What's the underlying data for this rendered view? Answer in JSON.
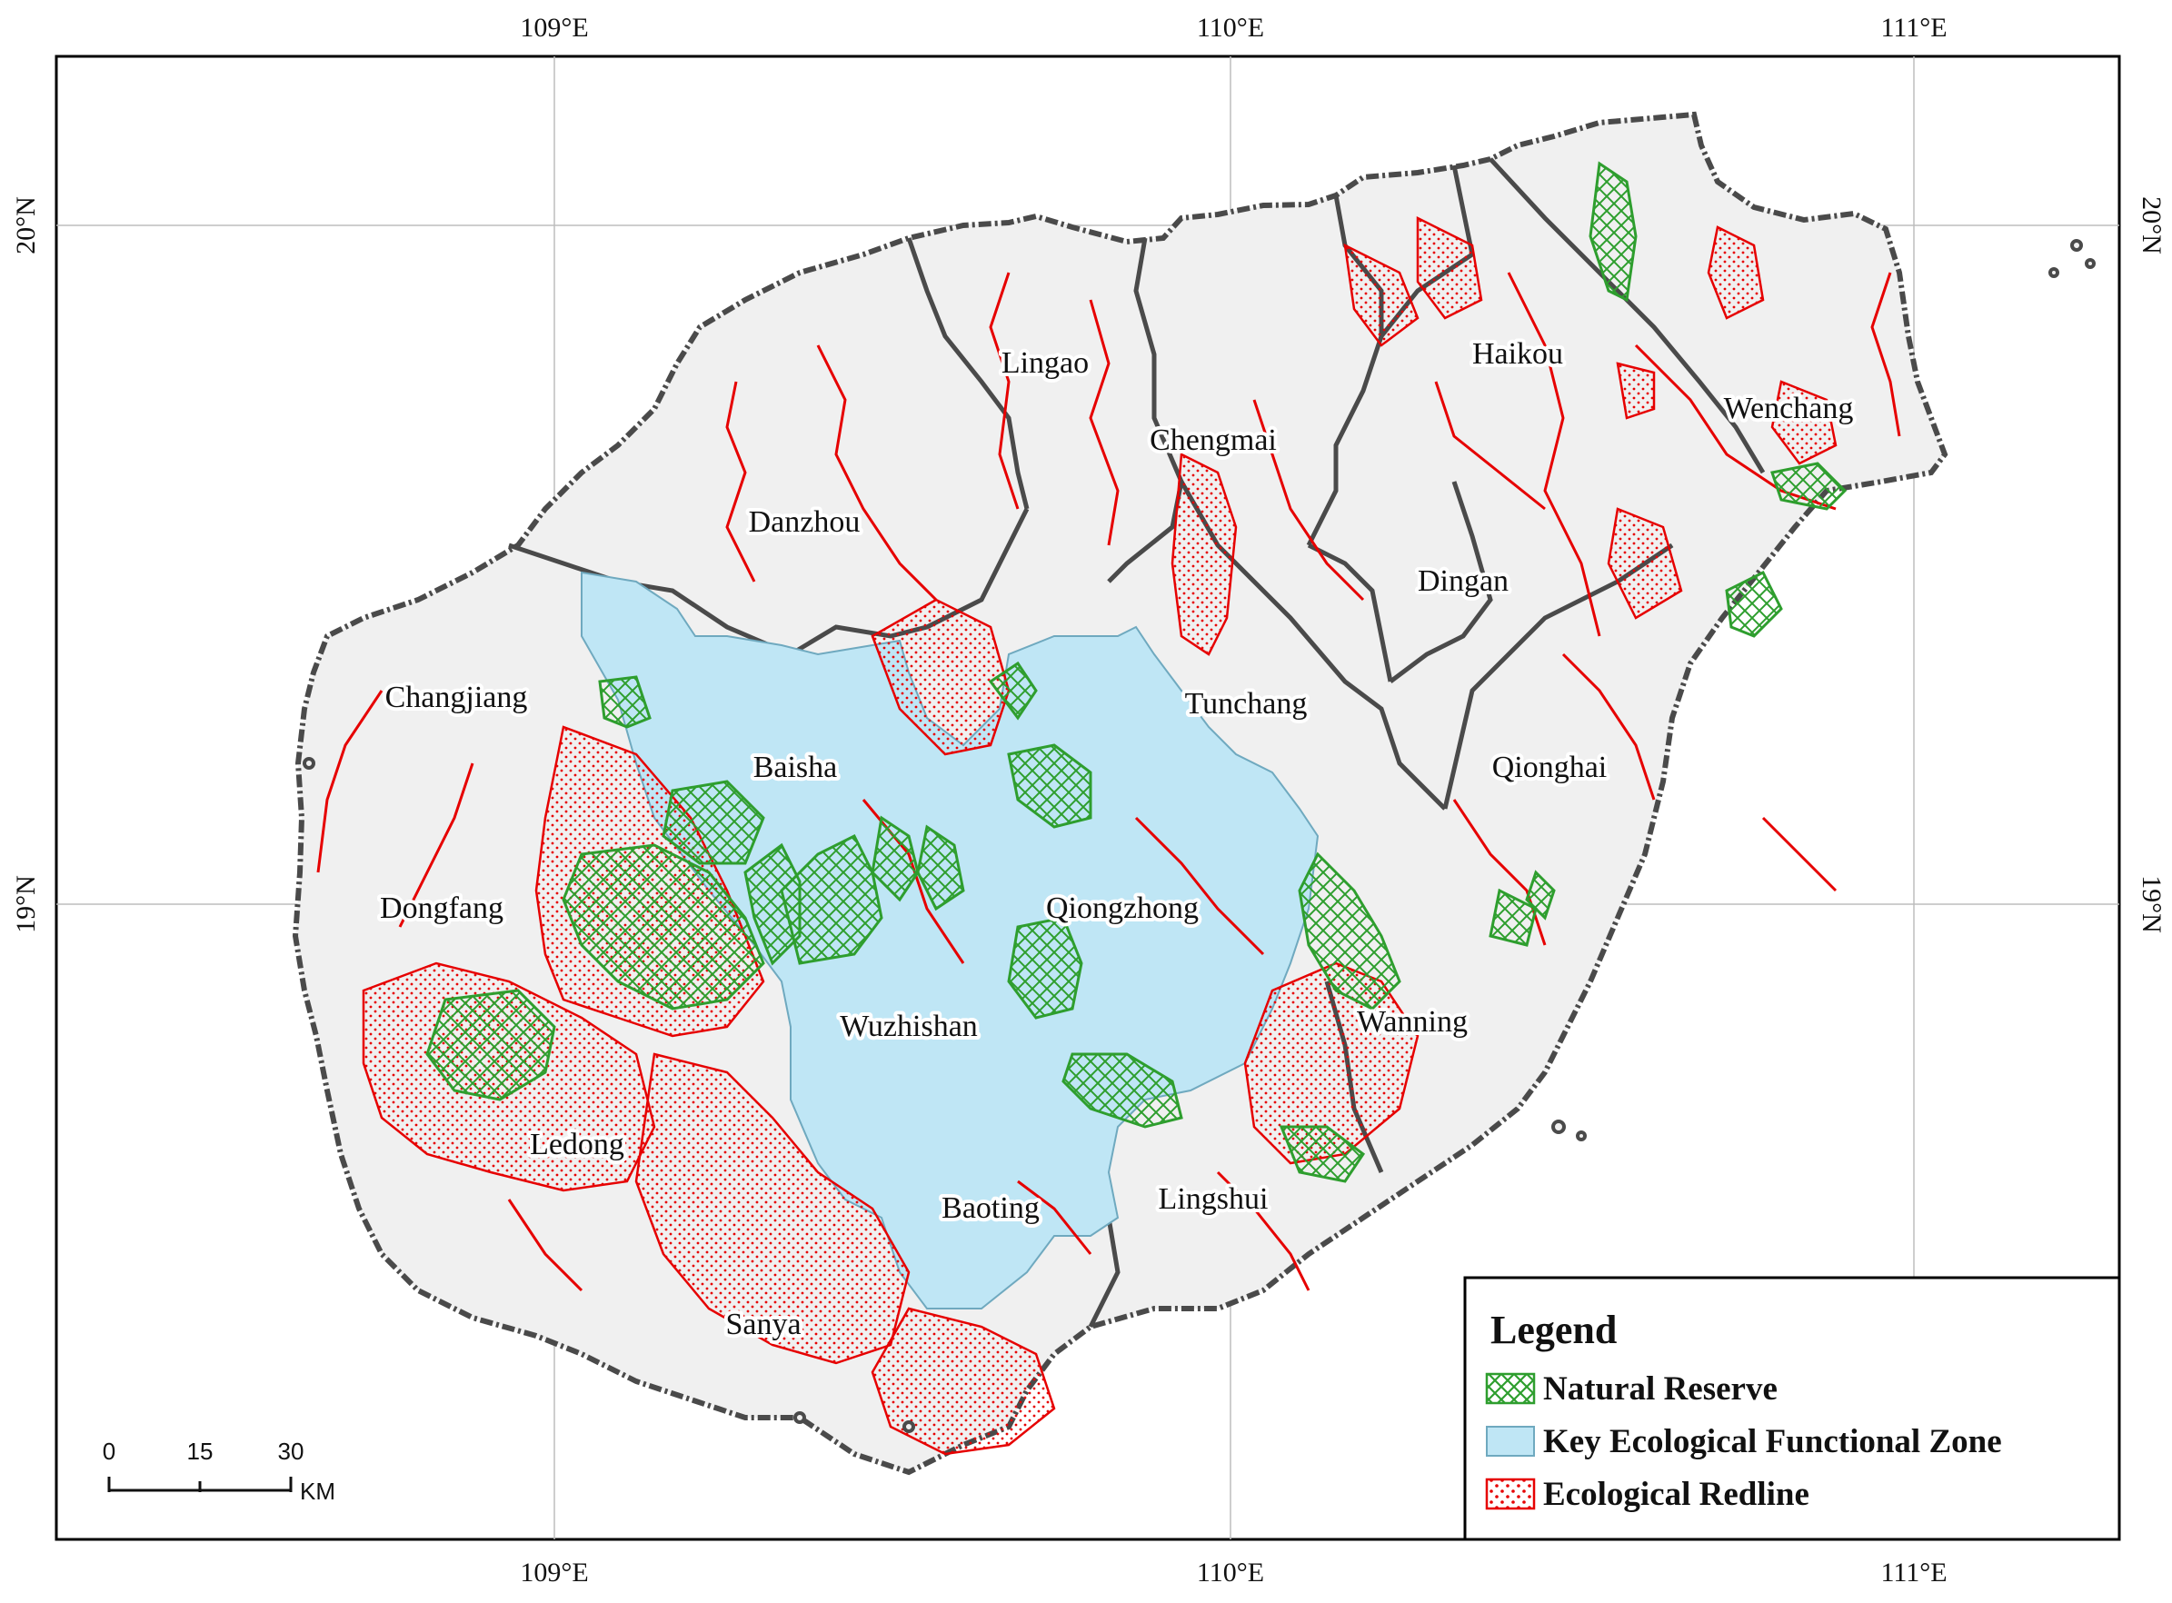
{
  "graticule": {
    "longitudes": [
      "109°E",
      "110°E",
      "111°E"
    ],
    "latitudes": [
      "20°N",
      "19°N"
    ]
  },
  "places": {
    "lingao": "Lingao",
    "haikou": "Haikou",
    "wenchang": "Wenchang",
    "chengmai": "Chengmai",
    "danzhou": "Danzhou",
    "dingan": "Dingan",
    "changjiang": "Changjiang",
    "tunchang": "Tunchang",
    "baisha": "Baisha",
    "qionghai": "Qionghai",
    "dongfang": "Dongfang",
    "qiongzhong": "Qiongzhong",
    "wanning": "Wanning",
    "wuzhishan": "Wuzhishan",
    "ledong": "Ledong",
    "lingshui": "Lingshui",
    "baoting": "Baoting",
    "sanya": "Sanya"
  },
  "legend": {
    "title": "Legend",
    "items": [
      {
        "label": "Natural Reserve",
        "color": "#2e9e2e",
        "pattern": "crosshatch"
      },
      {
        "label": "Key Ecological Functional Zone",
        "color": "#bfe6f5",
        "pattern": "solid"
      },
      {
        "label": "Ecological Redline",
        "color": "#e60000",
        "pattern": "dots"
      }
    ]
  },
  "scale_bar": {
    "ticks": [
      "0",
      "15",
      "30"
    ],
    "unit": "KM"
  },
  "colors": {
    "land": "#f0f0f0",
    "coast_boundary": "#4a4a4a",
    "redline": "#e60000",
    "reserve": "#2e9e2e",
    "functional_zone": "#bfe6f5",
    "grid": "#bdbdbd"
  }
}
